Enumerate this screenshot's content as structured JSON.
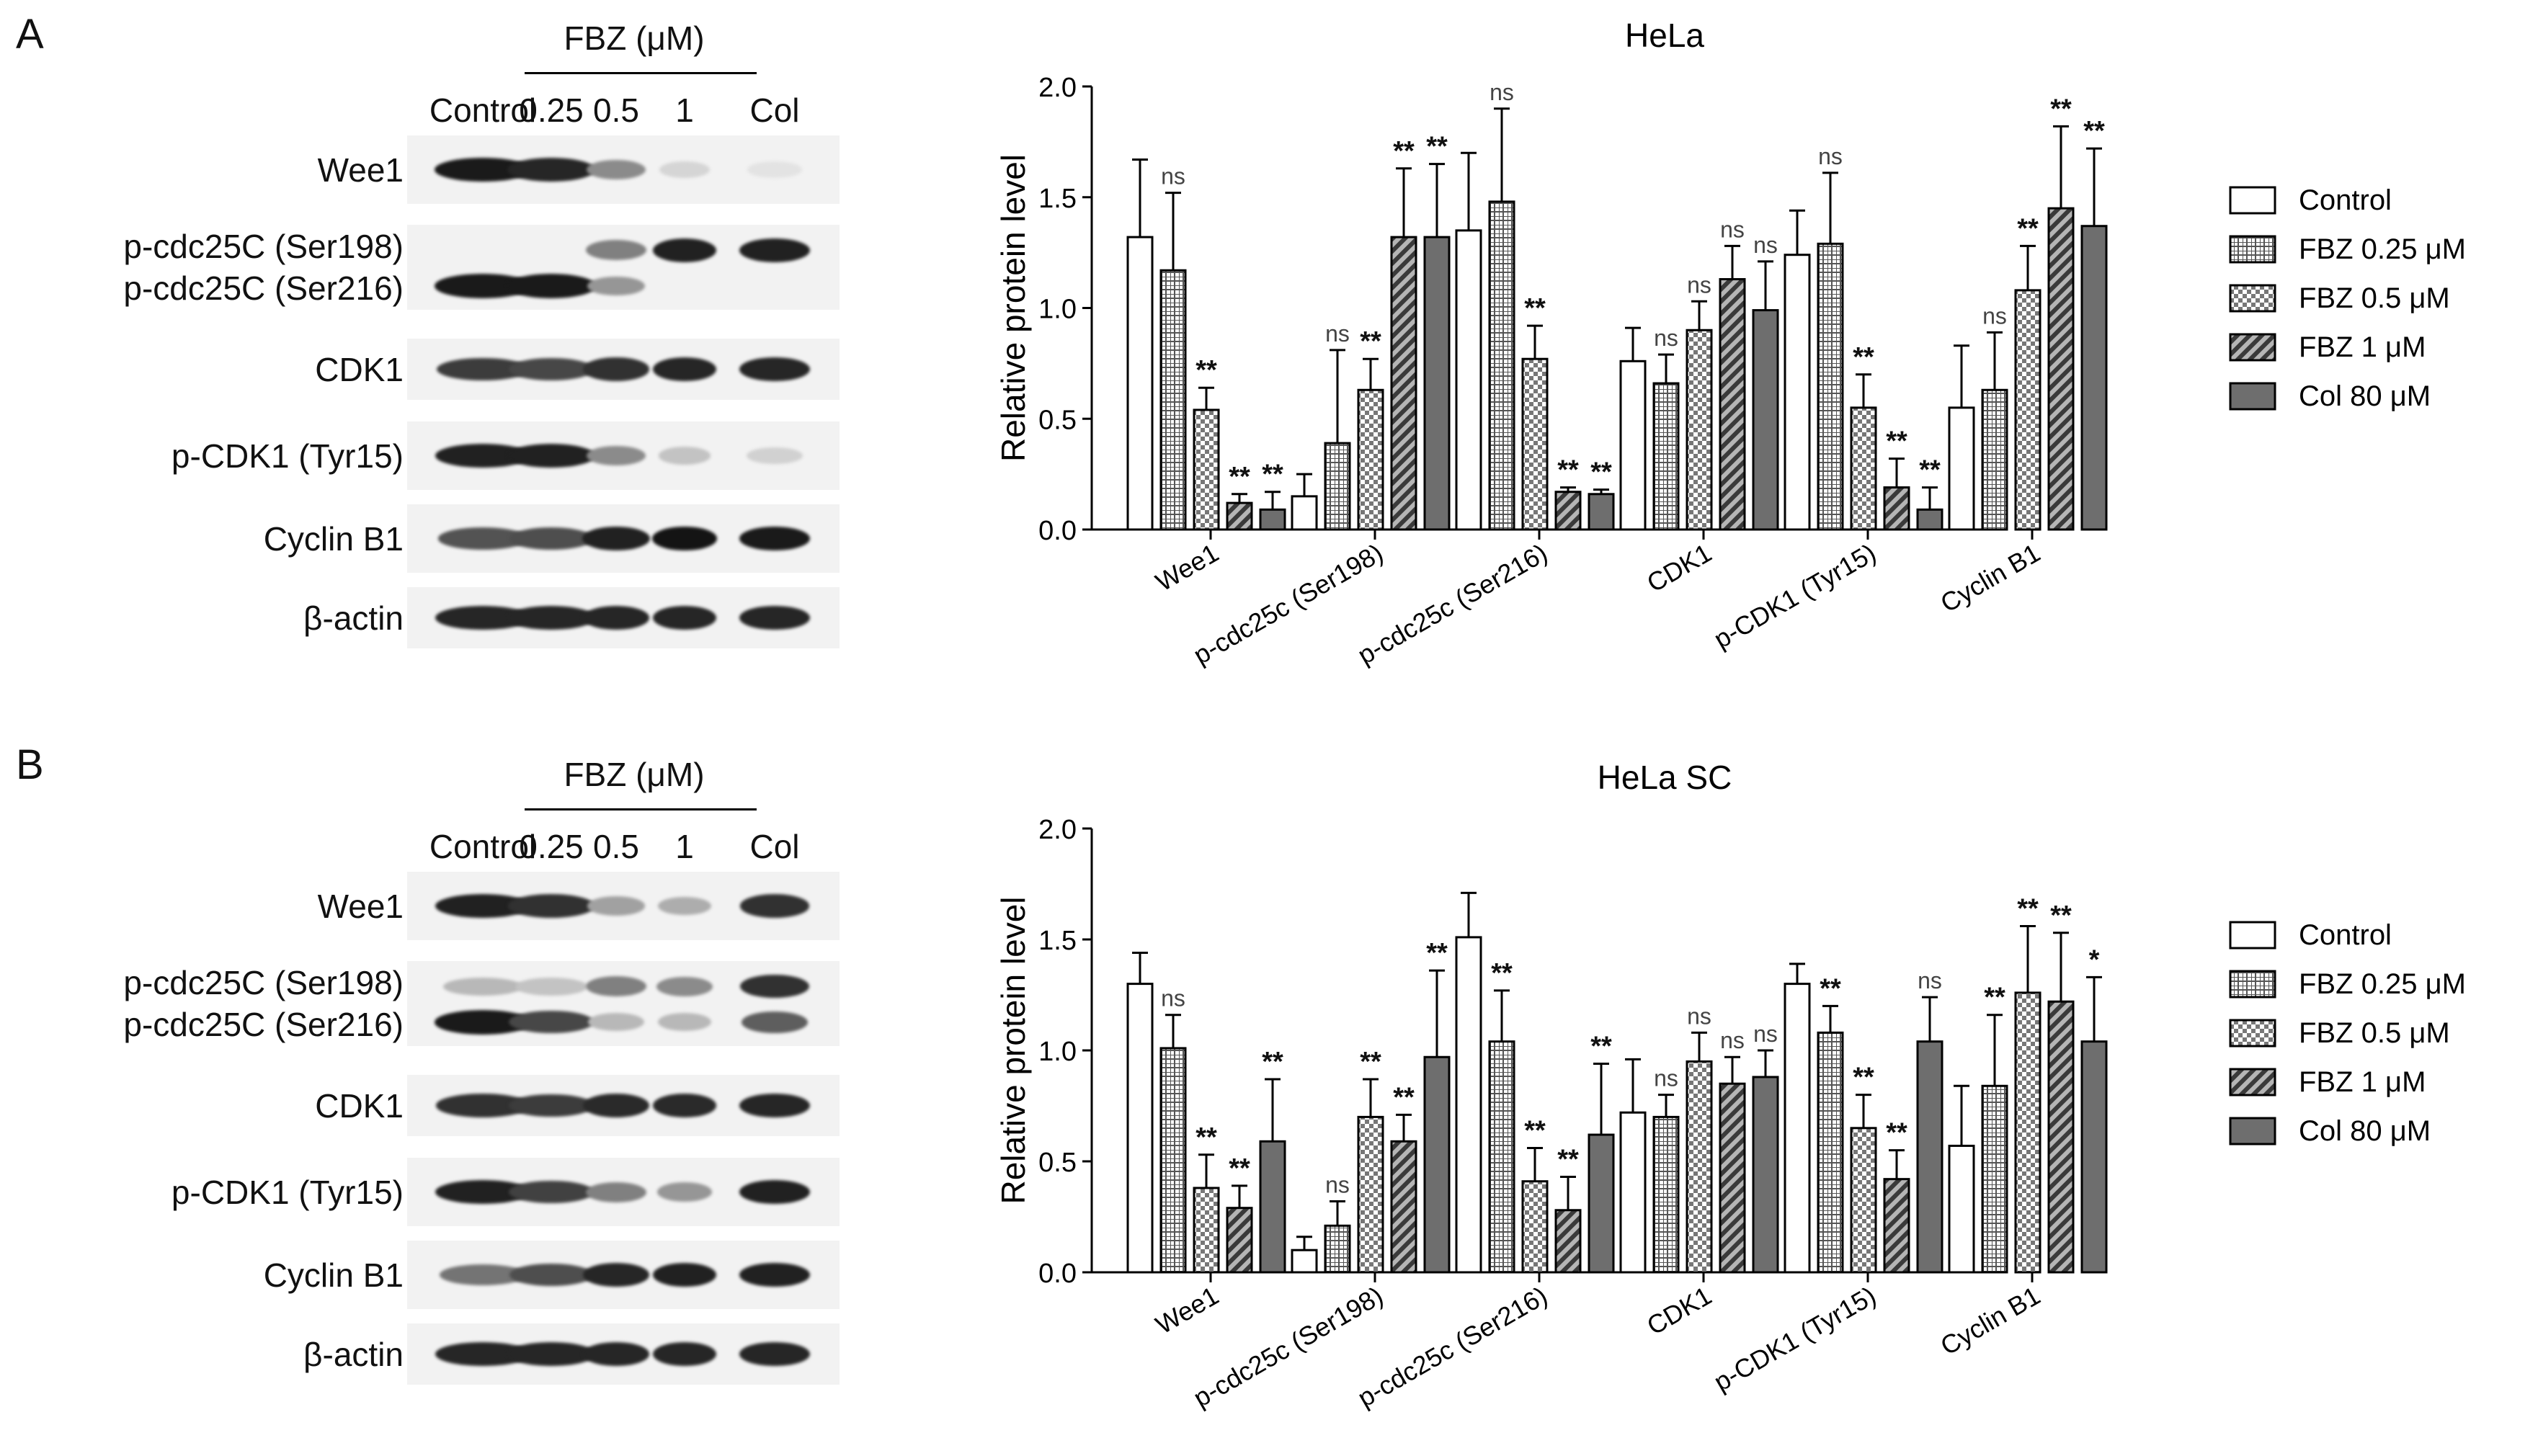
{
  "blot_panels": [
    {
      "letter": "A",
      "dose_label": "FBZ (μM)",
      "lanes": [
        "Control",
        "0.25",
        "0.5",
        "1",
        "Col"
      ],
      "rows": [
        {
          "label": "Wee1",
          "bands": [
            [
              0.95
            ],
            [
              0.9
            ],
            [
              0.45
            ],
            [
              0.12
            ],
            [
              0.06
            ]
          ]
        },
        {
          "label": "p-cdc25C (Ser198)\np-cdc25C (Ser216)",
          "bands": [
            [
              0.02,
              0.95
            ],
            [
              0.02,
              0.95
            ],
            [
              0.5,
              0.4
            ],
            [
              0.92,
              0.02
            ],
            [
              0.92,
              0.02
            ]
          ]
        },
        {
          "label": "CDK1",
          "bands": [
            [
              0.8
            ],
            [
              0.75
            ],
            [
              0.85
            ],
            [
              0.9
            ],
            [
              0.9
            ]
          ]
        },
        {
          "label": "p-CDK1 (Tyr15)",
          "bands": [
            [
              0.92
            ],
            [
              0.92
            ],
            [
              0.45
            ],
            [
              0.2
            ],
            [
              0.14
            ]
          ]
        },
        {
          "label": "Cyclin B1",
          "bands": [
            [
              0.7
            ],
            [
              0.72
            ],
            [
              0.92
            ],
            [
              0.98
            ],
            [
              0.95
            ]
          ]
        },
        {
          "label": "β-actin",
          "bands": [
            [
              0.9
            ],
            [
              0.9
            ],
            [
              0.9
            ],
            [
              0.9
            ],
            [
              0.9
            ]
          ]
        }
      ]
    },
    {
      "letter": "B",
      "dose_label": "FBZ (μM)",
      "lanes": [
        "Control",
        "0.25",
        "0.5",
        "1",
        "Col"
      ],
      "rows": [
        {
          "label": "Wee1",
          "bands": [
            [
              0.92
            ],
            [
              0.85
            ],
            [
              0.35
            ],
            [
              0.3
            ],
            [
              0.85
            ]
          ]
        },
        {
          "label": "p-cdc25C (Ser198)\np-cdc25C (Ser216)",
          "bands": [
            [
              0.25,
              0.95
            ],
            [
              0.2,
              0.75
            ],
            [
              0.5,
              0.25
            ],
            [
              0.45,
              0.25
            ],
            [
              0.85,
              0.65
            ]
          ]
        },
        {
          "label": "CDK1",
          "bands": [
            [
              0.85
            ],
            [
              0.8
            ],
            [
              0.88
            ],
            [
              0.88
            ],
            [
              0.9
            ]
          ]
        },
        {
          "label": "p-CDK1 (Tyr15)",
          "bands": [
            [
              0.92
            ],
            [
              0.78
            ],
            [
              0.5
            ],
            [
              0.4
            ],
            [
              0.92
            ]
          ]
        },
        {
          "label": "Cyclin B1",
          "bands": [
            [
              0.55
            ],
            [
              0.72
            ],
            [
              0.9
            ],
            [
              0.92
            ],
            [
              0.92
            ]
          ]
        },
        {
          "label": "β-actin",
          "bands": [
            [
              0.9
            ],
            [
              0.9
            ],
            [
              0.9
            ],
            [
              0.9
            ],
            [
              0.9
            ]
          ]
        }
      ]
    }
  ],
  "chart_data": [
    {
      "type": "bar",
      "title": "HeLa",
      "ylabel": "Relative protein level",
      "xlabel": "",
      "ylim": [
        0,
        2.0
      ],
      "yticks": [
        "0.0",
        "0.5",
        "1.0",
        "1.5",
        "2.0"
      ],
      "categories": [
        "Wee1",
        "p-cdc25c (Ser198)",
        "p-cdc25c (Ser216)",
        "CDK1",
        "p-CDK1 (Tyr15)",
        "Cyclin B1"
      ],
      "legend_position": "right",
      "series": [
        {
          "name": "Control",
          "pattern": "open",
          "values": [
            1.32,
            0.15,
            1.35,
            0.76,
            1.24,
            0.55
          ],
          "errors": [
            0.35,
            0.1,
            0.35,
            0.15,
            0.2,
            0.28
          ],
          "sig": [
            "",
            "",
            "",
            "",
            "",
            ""
          ]
        },
        {
          "name": "FBZ 0.25 μM",
          "pattern": "grid",
          "values": [
            1.17,
            0.39,
            1.48,
            0.66,
            1.29,
            0.63
          ],
          "errors": [
            0.35,
            0.42,
            0.42,
            0.13,
            0.32,
            0.26
          ],
          "sig": [
            "ns",
            "ns",
            "ns",
            "ns",
            "ns",
            "ns"
          ]
        },
        {
          "name": "FBZ 0.5 μM",
          "pattern": "checker",
          "values": [
            0.54,
            0.63,
            0.77,
            0.9,
            0.55,
            1.08
          ],
          "errors": [
            0.1,
            0.14,
            0.15,
            0.13,
            0.15,
            0.2
          ],
          "sig": [
            "**",
            "**",
            "**",
            "ns",
            "**",
            "**"
          ]
        },
        {
          "name": "FBZ 1 μM",
          "pattern": "diag",
          "values": [
            0.12,
            1.32,
            0.17,
            1.13,
            0.19,
            1.45
          ],
          "errors": [
            0.04,
            0.31,
            0.02,
            0.15,
            0.13,
            0.37
          ],
          "sig": [
            "**",
            "**",
            "**",
            "ns",
            "**",
            "**"
          ]
        },
        {
          "name": "Col 80 μM",
          "pattern": "solid",
          "values": [
            0.09,
            1.32,
            0.16,
            0.99,
            0.09,
            1.37
          ],
          "errors": [
            0.08,
            0.33,
            0.02,
            0.22,
            0.1,
            0.35
          ],
          "sig": [
            "**",
            "**",
            "**",
            "ns",
            "**",
            "**"
          ]
        }
      ]
    },
    {
      "type": "bar",
      "title": "HeLa SC",
      "ylabel": "Relative protein level",
      "xlabel": "",
      "ylim": [
        0,
        2.0
      ],
      "yticks": [
        "0.0",
        "0.5",
        "1.0",
        "1.5",
        "2.0"
      ],
      "categories": [
        "Wee1",
        "p-cdc25c (Ser198)",
        "p-cdc25c (Ser216)",
        "CDK1",
        "p-CDK1 (Tyr15)",
        "Cyclin B1"
      ],
      "legend_position": "right",
      "series": [
        {
          "name": "Control",
          "pattern": "open",
          "values": [
            1.3,
            0.1,
            1.51,
            0.72,
            1.3,
            0.57
          ],
          "errors": [
            0.14,
            0.06,
            0.2,
            0.24,
            0.09,
            0.27
          ],
          "sig": [
            "",
            "",
            "",
            "",
            "",
            ""
          ]
        },
        {
          "name": "FBZ 0.25 μM",
          "pattern": "grid",
          "values": [
            1.01,
            0.21,
            1.04,
            0.7,
            1.08,
            0.84
          ],
          "errors": [
            0.15,
            0.11,
            0.23,
            0.1,
            0.12,
            0.32
          ],
          "sig": [
            "ns",
            "ns",
            "**",
            "ns",
            "**",
            "**"
          ]
        },
        {
          "name": "FBZ 0.5 μM",
          "pattern": "checker",
          "values": [
            0.38,
            0.7,
            0.41,
            0.95,
            0.65,
            1.26
          ],
          "errors": [
            0.15,
            0.17,
            0.15,
            0.13,
            0.15,
            0.3
          ],
          "sig": [
            "**",
            "**",
            "**",
            "ns",
            "**",
            "**"
          ]
        },
        {
          "name": "FBZ 1 μM",
          "pattern": "diag",
          "values": [
            0.29,
            0.59,
            0.28,
            0.85,
            0.42,
            1.22
          ],
          "errors": [
            0.1,
            0.12,
            0.15,
            0.12,
            0.13,
            0.31
          ],
          "sig": [
            "**",
            "**",
            "**",
            "ns",
            "**",
            "**"
          ]
        },
        {
          "name": "Col 80 μM",
          "pattern": "solid",
          "values": [
            0.59,
            0.97,
            0.62,
            0.88,
            1.04,
            1.04
          ],
          "errors": [
            0.28,
            0.39,
            0.32,
            0.12,
            0.2,
            0.29
          ],
          "sig": [
            "**",
            "**",
            "**",
            "ns",
            "ns",
            "*"
          ]
        }
      ]
    }
  ]
}
